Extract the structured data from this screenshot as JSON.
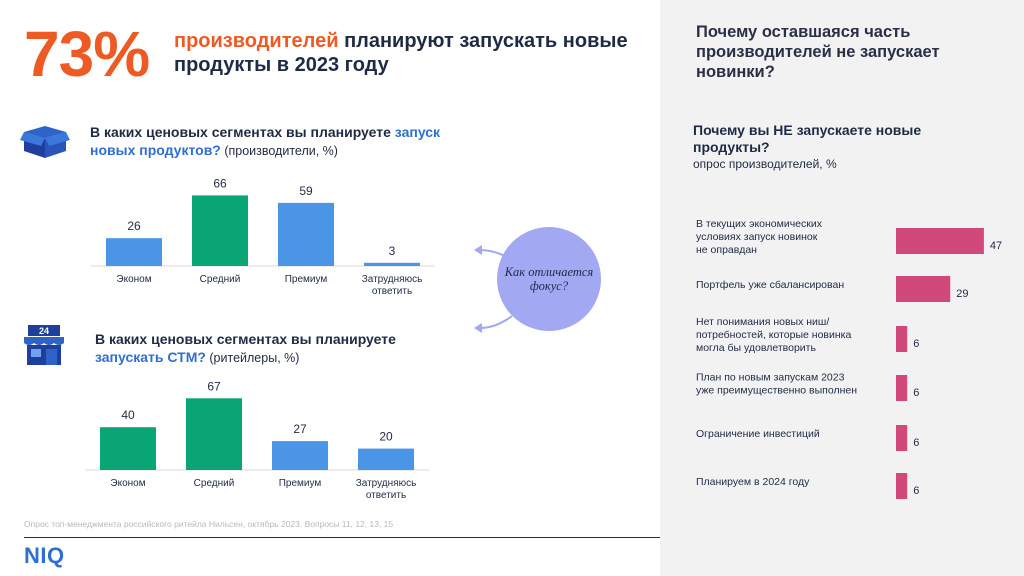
{
  "headline": {
    "big_number": "73%",
    "accent": "производителей",
    "rest": " планируют запускать новые продукты в 2023 году"
  },
  "chart1": {
    "icon": "box-icon",
    "title_bold": "В каких ценовых сегментах вы планируете ",
    "title_blue": "запуск новых продуктов?",
    "title_normal": " (производители, %)"
  },
  "chart2": {
    "icon": "store-icon",
    "icon_text": "24",
    "title_bold": "В каких ценовых сегментах вы планируете ",
    "title_blue": "запускать СТМ?",
    "title_normal": " (ритейлеры, %)"
  },
  "focus": {
    "text": "Как отличается фокус?"
  },
  "right": {
    "title": "Почему оставшаяся часть производителей не запускает новинки?",
    "question": "Почему вы НЕ запускаете новые продукты?",
    "subtitle": "опрос производителей, %"
  },
  "footnote": "Опрос топ-менеджмента российского ритейла Нильсен, октябрь 2023. Вопросы 11, 12, 13, 15",
  "logo": "NIQ",
  "colors": {
    "orange": "#ee5a24",
    "green": "#0aa574",
    "blue": "#4a95e6",
    "pink": "#d1497a",
    "lavender": "#a3a8f2"
  },
  "chart_data": [
    {
      "type": "bar",
      "categories": [
        [
          "Эконом"
        ],
        [
          "Средний"
        ],
        [
          "Премиум"
        ],
        [
          "Затрудняюсь",
          "ответить"
        ]
      ],
      "values": [
        26,
        66,
        59,
        3
      ],
      "colors": [
        "#4a95e6",
        "#0aa574",
        "#4a95e6",
        "#4a95e6"
      ]
    },
    {
      "type": "bar",
      "categories": [
        [
          "Эконом"
        ],
        [
          "Средний"
        ],
        [
          "Премиум"
        ],
        [
          "Затрудняюсь",
          "ответить"
        ]
      ],
      "values": [
        40,
        67,
        27,
        20
      ],
      "colors": [
        "#0aa574",
        "#0aa574",
        "#4a95e6",
        "#4a95e6"
      ]
    },
    {
      "type": "bar",
      "orientation": "horizontal",
      "categories": [
        [
          "В текущих экономических",
          "условиях запуск новинок",
          "не оправдан"
        ],
        [
          "Портфель уже сбалансирован"
        ],
        [
          "Нет понимания новых ниш/",
          "потребностей, которые новинка",
          "могла бы удовлетворить"
        ],
        [
          "План по новым запускам 2023",
          "уже преимущественно выполнен"
        ],
        [
          "Ограничение инвестиций"
        ],
        [
          "Планируем в 2024 году"
        ]
      ],
      "values": [
        47,
        29,
        6,
        6,
        6,
        6
      ],
      "color": "#d1497a"
    }
  ]
}
